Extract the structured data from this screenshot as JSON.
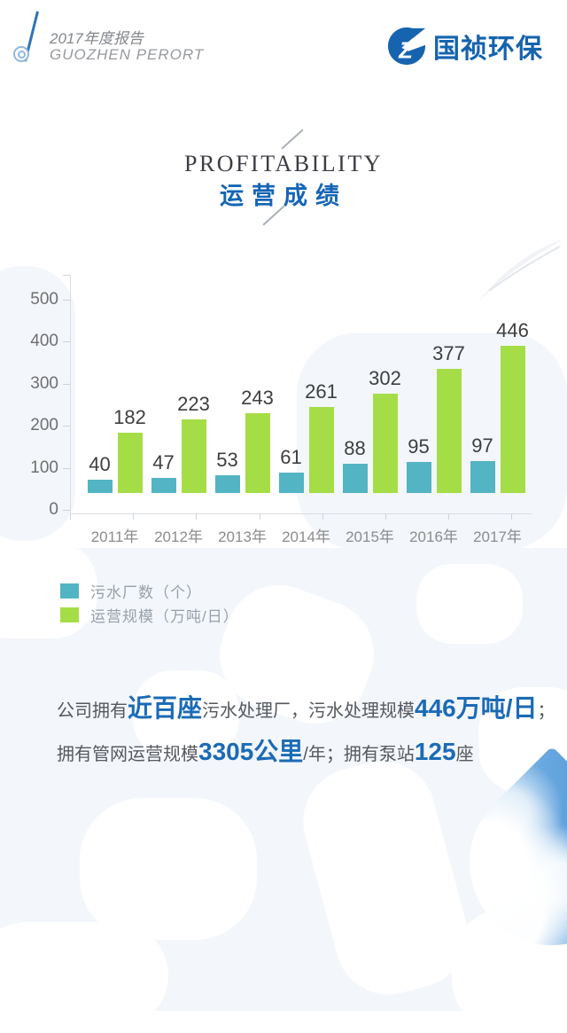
{
  "header": {
    "report_title_cn": "2017年度报告",
    "report_title_en": "GUOZHEN PERORT",
    "brand_name": "国祯环保"
  },
  "section": {
    "title_en": "PROFITABILITY",
    "title_cn": "运营成绩"
  },
  "chart_data": {
    "type": "bar",
    "categories": [
      "2011年",
      "2012年",
      "2013年",
      "2014年",
      "2015年",
      "2016年",
      "2017年"
    ],
    "series": [
      {
        "name": "污水厂数（个）",
        "slug": "sewage-plants",
        "color": "#53b4c3",
        "values": [
          40,
          47,
          53,
          61,
          88,
          95,
          97
        ]
      },
      {
        "name": "运营规模（万吨/日）",
        "slug": "operating-scale",
        "color": "#a5dd47",
        "values": [
          182,
          223,
          243,
          261,
          302,
          377,
          446
        ]
      }
    ],
    "y_ticks": [
      0,
      100,
      200,
      300,
      400,
      500
    ],
    "ylim": [
      0,
      500
    ],
    "grid": false,
    "data_labels": true,
    "legend_position": "bottom-left"
  },
  "summary": {
    "lines": [
      [
        {
          "text": "公司拥有",
          "highlight": false
        },
        {
          "text": "近百座",
          "highlight": true
        },
        {
          "text": "污水处理厂，污水处理规模",
          "highlight": false
        },
        {
          "text": "446万吨/日",
          "highlight": true
        },
        {
          "text": "；",
          "highlight": false
        }
      ],
      [
        {
          "text": "拥有管网运营规模",
          "highlight": false
        },
        {
          "text": "3305公里",
          "highlight": true
        },
        {
          "text": "/年；拥有泵站",
          "highlight": false
        },
        {
          "text": "125",
          "highlight": true
        },
        {
          "text": "座",
          "highlight": false
        }
      ]
    ]
  },
  "colors": {
    "accent_blue": "#1565b5",
    "logo_blue": "#1563ad",
    "teal_bar": "#53b4c3",
    "green_bar": "#a5dd47",
    "axis_gray": "#d9dce1"
  }
}
